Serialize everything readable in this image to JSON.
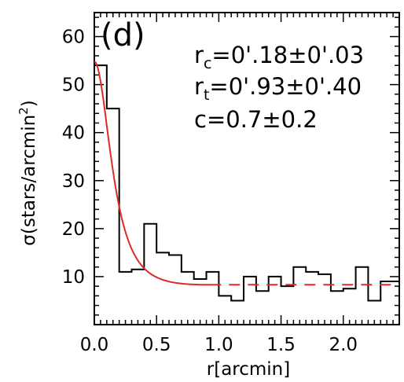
{
  "chart_data": {
    "type": "line",
    "panel_label": "(d)",
    "xlabel": "r[arcmin]",
    "ylabel": "σ(stars/arcmin",
    "ylabel_sup": "2",
    "ylabel_close": ")",
    "xlim": [
      0,
      2.45
    ],
    "ylim": [
      0,
      65
    ],
    "x_ticks": [
      0.0,
      0.5,
      1.0,
      1.5,
      2.0
    ],
    "x_tick_labels": [
      "0.0",
      "0.5",
      "1.0",
      "1.5",
      "2.0"
    ],
    "y_ticks": [
      10,
      20,
      30,
      40,
      50,
      60
    ],
    "y_tick_labels": [
      "10",
      "20",
      "30",
      "40",
      "50",
      "60"
    ],
    "annotations": [
      {
        "main": "r",
        "sub": "c",
        "rest": "=0'.18±0'.03"
      },
      {
        "main": "r",
        "sub": "t",
        "rest": "=0'.93±0'.40"
      },
      {
        "main": "c=0.7±0.2",
        "sub": "",
        "rest": ""
      }
    ],
    "series": [
      {
        "kind": "histogram",
        "color": "#000000",
        "bin_edges": [
          0.0,
          0.1,
          0.2,
          0.3,
          0.4,
          0.5,
          0.6,
          0.7,
          0.8,
          0.9,
          1.0,
          1.1,
          1.2,
          1.3,
          1.4,
          1.5,
          1.6,
          1.7,
          1.8,
          1.9,
          2.0,
          2.1,
          2.2,
          2.3,
          2.4,
          2.45
        ],
        "values": [
          54,
          45,
          11,
          11.5,
          21,
          15,
          14.5,
          11,
          9.5,
          11,
          6,
          5,
          10,
          7,
          10,
          8,
          12,
          11,
          10.5,
          7,
          7.5,
          12,
          5,
          9,
          9
        ]
      },
      {
        "kind": "king_profile",
        "color": "#e02a2a",
        "model": {
          "f0": 46.5,
          "rc": 0.18,
          "rt": 0.93,
          "f_bg": 8.3
        },
        "x": [
          0.0,
          0.1,
          0.2,
          0.3,
          0.4,
          0.5,
          0.6,
          0.7,
          0.8,
          0.93
        ],
        "y": [
          54.8,
          36.6,
          22.5,
          15.1,
          11.7,
          10.0,
          9.1,
          8.6,
          8.4,
          8.3
        ]
      },
      {
        "kind": "background_level",
        "color": "#e02a2a",
        "dashed": true,
        "x": [
          0.93,
          2.45
        ],
        "y": [
          8.3,
          8.3
        ]
      }
    ]
  }
}
